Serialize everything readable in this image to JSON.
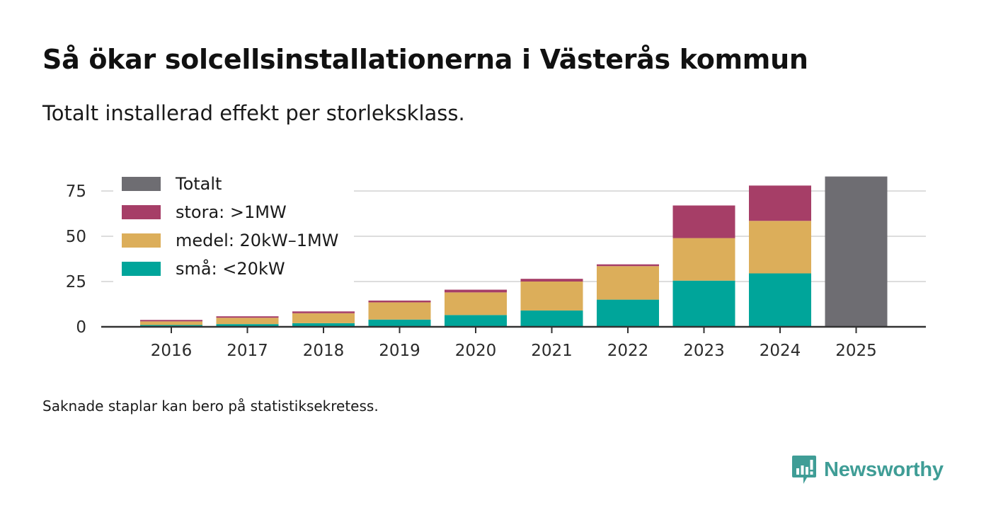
{
  "header": {
    "title": "Så ökar solcellsinstallationerna i Västerås kommun",
    "subtitle": "Totalt installerad effekt per storleksklass."
  },
  "footer": {
    "note": "Saknade staplar kan bero på statistiksekretess.",
    "brand": "Newsworthy"
  },
  "chart_data": {
    "type": "bar",
    "stacked": true,
    "title": "Så ökar solcellsinstallationerna i Västerås kommun",
    "subtitle": "Totalt installerad effekt per storleksklass.",
    "xlabel": "",
    "ylabel": "",
    "ylim": [
      0,
      82
    ],
    "yticks": [
      0,
      25,
      50,
      75
    ],
    "grid": true,
    "legend_position": "top-left",
    "categories": [
      "2016",
      "2017",
      "2018",
      "2019",
      "2020",
      "2021",
      "2022",
      "2023",
      "2024",
      "2025"
    ],
    "series": [
      {
        "name": "små: <20kW",
        "color": "#00a59a",
        "values": [
          1,
          1.5,
          2,
          4,
          6.5,
          9,
          15,
          25.5,
          29.5,
          null
        ]
      },
      {
        "name": "medel: 20kW–1MW",
        "color": "#dcae5a",
        "values": [
          2,
          3.5,
          5.5,
          9.5,
          12.5,
          16,
          18.5,
          23.5,
          29,
          null
        ]
      },
      {
        "name": "stora: >1MW",
        "color": "#a63e67",
        "values": [
          0.8,
          0.8,
          1,
          1,
          1.5,
          1.5,
          1,
          18,
          19.5,
          null
        ]
      },
      {
        "name": "Totalt",
        "color": "#6e6d72",
        "values": [
          null,
          null,
          null,
          null,
          null,
          null,
          null,
          null,
          null,
          83
        ]
      }
    ],
    "legend_order": [
      "Totalt",
      "stora: >1MW",
      "medel: 20kW–1MW",
      "små: <20kW"
    ]
  }
}
